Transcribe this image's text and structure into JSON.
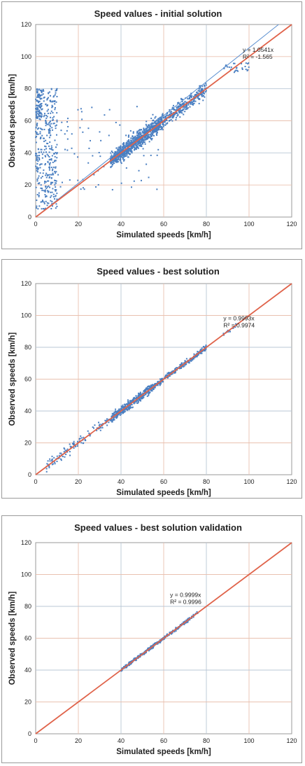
{
  "chart_data": [
    {
      "type": "scatter",
      "title": "Speed values - initial solution",
      "xlabel": "Simulated speeds [km/h]",
      "ylabel": "Observed speeds [km/h]",
      "xlim": [
        0,
        120
      ],
      "ylim": [
        0,
        120
      ],
      "xticks": [
        "0",
        "20",
        "40",
        "60",
        "80",
        "100",
        "120"
      ],
      "yticks": [
        "0",
        "20",
        "40",
        "60",
        "80",
        "100",
        "120"
      ],
      "grid": true,
      "series_color": "#4a7fc1",
      "identity_line": {
        "from": [
          0,
          0
        ],
        "to": [
          120,
          120
        ],
        "color": "#e0634a"
      },
      "trendline": {
        "slope": 1.0541,
        "color": "#5a8fd0"
      },
      "annotation": {
        "equation": "y = 1.0541x",
        "r2": "R² = -1.565",
        "at": [
          97,
          103
        ]
      },
      "clusters": [
        {
          "x": [
            0,
            10
          ],
          "y": [
            5,
            80
          ],
          "n": 380
        },
        {
          "x": [
            0,
            3
          ],
          "y": [
            60,
            80
          ],
          "n": 60
        },
        {
          "x": [
            35,
            60
          ],
          "y": [
            36,
            60
          ],
          "diag": 1.0,
          "spread": 2.5,
          "n": 900
        },
        {
          "x": [
            60,
            80
          ],
          "y": [
            58,
            80
          ],
          "diag": 1.0,
          "spread": 2.2,
          "n": 300
        },
        {
          "x": [
            88,
            100
          ],
          "y": [
            90,
            96
          ],
          "n": 30
        },
        {
          "x": [
            10,
            60
          ],
          "y": [
            15,
            70
          ],
          "n": 80
        }
      ]
    },
    {
      "type": "scatter",
      "title": "Speed values - best solution",
      "xlabel": "Simulated speeds [km/h]",
      "ylabel": "Observed speeds [km/h]",
      "xlim": [
        0,
        120
      ],
      "ylim": [
        0,
        120
      ],
      "xticks": [
        "0",
        "20",
        "40",
        "60",
        "80",
        "100",
        "120"
      ],
      "yticks": [
        "0",
        "20",
        "40",
        "60",
        "80",
        "100",
        "120"
      ],
      "grid": true,
      "series_color": "#4a7fc1",
      "identity_line": {
        "from": [
          0,
          0
        ],
        "to": [
          120,
          120
        ],
        "color": "#e0634a"
      },
      "trendline": {
        "slope": 0.9993,
        "color": "#5a8fd0"
      },
      "annotation": {
        "equation": "y = 0.9993x",
        "r2": "R² = 0.9974",
        "at": [
          88,
          97
        ]
      },
      "clusters": [
        {
          "x": [
            5,
            35
          ],
          "y": [
            5,
            35
          ],
          "diag": 1.0,
          "spread": 1.8,
          "n": 120
        },
        {
          "x": [
            35,
            55
          ],
          "y": [
            35,
            55
          ],
          "diag": 1.0,
          "spread": 1.4,
          "n": 400
        },
        {
          "x": [
            55,
            80
          ],
          "y": [
            55,
            80
          ],
          "diag": 1.0,
          "spread": 0.8,
          "n": 300
        },
        {
          "x": [
            88,
            94
          ],
          "y": [
            88,
            94
          ],
          "diag": 1.0,
          "spread": 0.6,
          "n": 15
        }
      ]
    },
    {
      "type": "scatter",
      "title": "Speed values - best solution validation",
      "xlabel": "Simulated speeds [km/h]",
      "ylabel": "Observed speeds [km/h]",
      "xlim": [
        0,
        120
      ],
      "ylim": [
        0,
        120
      ],
      "xticks": [
        "0",
        "20",
        "40",
        "60",
        "80",
        "100",
        "120"
      ],
      "yticks": [
        "0",
        "20",
        "40",
        "60",
        "80",
        "100",
        "120"
      ],
      "grid": true,
      "series_color": "#4a7fc1",
      "identity_line": {
        "from": [
          0,
          0
        ],
        "to": [
          120,
          120
        ],
        "color": "#e0634a"
      },
      "trendline": {
        "slope": 0.9999,
        "color": "#5a8fd0"
      },
      "annotation": {
        "equation": "y = 0.9999x",
        "r2": "R² = 0.9996",
        "at": [
          63,
          86
        ]
      },
      "clusters": [
        {
          "x": [
            40,
            60
          ],
          "y": [
            40,
            60
          ],
          "diag": 1.0,
          "spread": 0.5,
          "n": 250
        },
        {
          "x": [
            60,
            76
          ],
          "y": [
            60,
            76
          ],
          "diag": 1.0,
          "spread": 0.5,
          "n": 120
        }
      ]
    }
  ]
}
